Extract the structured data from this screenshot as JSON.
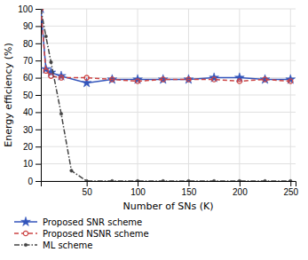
{
  "chart_data": {
    "type": "line",
    "title": "",
    "xlabel": "Number of SNs (K)",
    "ylabel": "Energy efficiency (%)",
    "xlim": [
      5,
      255
    ],
    "ylim": [
      0,
      100
    ],
    "xticks": [
      50,
      100,
      150,
      200,
      250
    ],
    "yticks": [
      0,
      10,
      20,
      30,
      40,
      50,
      60,
      70,
      80,
      90,
      100
    ],
    "grid": true,
    "legend": "bottom",
    "series": [
      {
        "name": "Proposed SNR scheme",
        "color": "#3355bb",
        "marker": "star",
        "line_style": "solid",
        "x": [
          5,
          10,
          15,
          25,
          50,
          75,
          100,
          125,
          150,
          175,
          200,
          225,
          250
        ],
        "values": [
          100,
          65,
          63,
          61,
          57,
          59,
          59,
          59,
          59,
          60,
          60,
          59,
          59
        ]
      },
      {
        "name": "Proposed NSNR scheme",
        "color": "#cc4444",
        "marker": "circle",
        "line_style": "dashed",
        "x": [
          5,
          10,
          15,
          25,
          50,
          75,
          100,
          125,
          150,
          175,
          200,
          225,
          250
        ],
        "values": [
          100,
          64,
          61,
          60,
          60,
          59,
          58,
          59,
          59,
          59,
          58,
          59,
          58
        ]
      },
      {
        "name": "ML scheme",
        "color": "#444444",
        "marker": "dot",
        "line_style": "dashdot",
        "x": [
          5,
          10,
          15,
          25,
          35,
          50,
          75,
          100,
          125,
          150,
          175,
          200,
          225,
          250
        ],
        "values": [
          100,
          84,
          69,
          39,
          6,
          0,
          0,
          0,
          0,
          0,
          0,
          0,
          0,
          0
        ]
      }
    ]
  }
}
